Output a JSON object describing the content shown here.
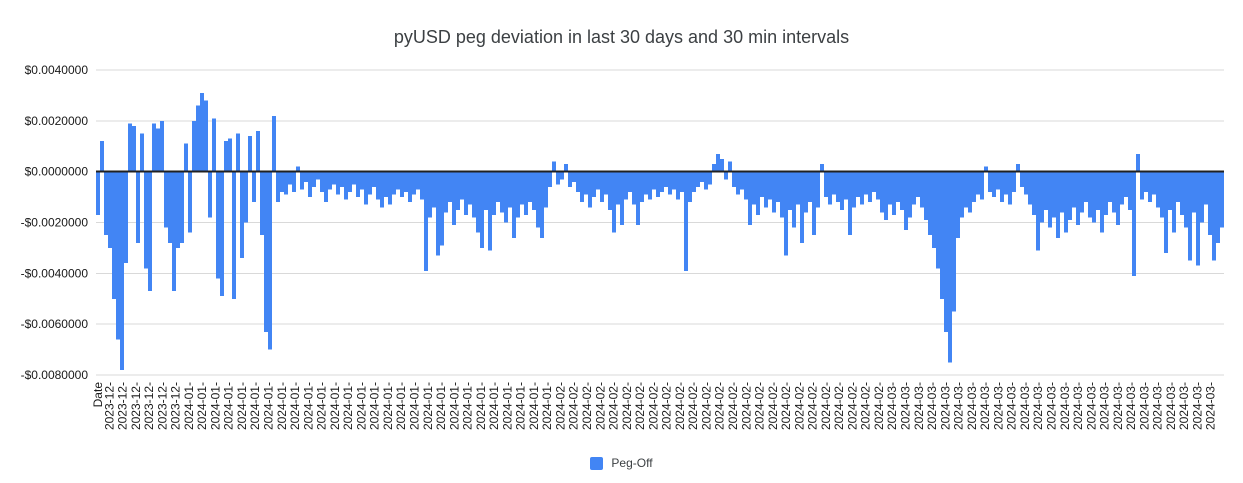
{
  "chart_data": {
    "type": "bar",
    "title": "pyUSD peg deviation in last 30 days and 30 min intervals",
    "series": [
      {
        "name": "Peg-Off"
      }
    ],
    "legend": {
      "label": "Peg-Off",
      "position": "bottom"
    },
    "x_axis": {
      "title": "Date",
      "tick_groups": [
        {
          "label": "2023-12-",
          "count": 6
        },
        {
          "label": "2024-01-",
          "count": 28
        },
        {
          "label": "2024-02-",
          "count": 25
        },
        {
          "label": "2024-03-",
          "count": 25
        }
      ]
    },
    "y_axis": {
      "tick_labels": [
        "$0.0040000",
        "$0.0020000",
        "$0.0000000",
        "-$0.0020000",
        "-$0.0040000",
        "-$0.0060000",
        "-$0.0080000"
      ],
      "tick_values": [
        0.004,
        0.002,
        0,
        -0.002,
        -0.004,
        -0.006,
        -0.008
      ],
      "range": [
        -0.008,
        0.004
      ],
      "grid": true
    },
    "value_unit": 0.0001,
    "values": [
      -17,
      12,
      -25,
      -30,
      -50,
      -66,
      -78,
      -36,
      19,
      18,
      -28,
      15,
      -38,
      -47,
      19,
      17,
      20,
      -22,
      -28,
      -47,
      -30,
      -28,
      11,
      -24,
      20,
      26,
      31,
      28,
      -18,
      21,
      -42,
      -49,
      12,
      13,
      -50,
      15,
      -34,
      -20,
      14,
      -12,
      16,
      -25,
      -63,
      -70,
      22,
      -12,
      -8,
      -9,
      -5,
      -8,
      2,
      -7,
      -4,
      -10,
      -6,
      -3,
      -8,
      -12,
      -7,
      -5,
      -9,
      -6,
      -11,
      -8,
      -5,
      -10,
      -7,
      -13,
      -9,
      -6,
      -11,
      -14,
      -10,
      -13,
      -9,
      -7,
      -10,
      -8,
      -12,
      -9,
      -7,
      -11,
      -39,
      -18,
      -14,
      -33,
      -29,
      -16,
      -12,
      -21,
      -15,
      -11,
      -17,
      -13,
      -18,
      -24,
      -30,
      -15,
      -31,
      -17,
      -12,
      -16,
      -20,
      -14,
      -26,
      -18,
      -13,
      -17,
      -12,
      -15,
      -22,
      -26,
      -14,
      -6,
      4,
      -5,
      -3,
      3,
      -6,
      -4,
      -8,
      -12,
      -9,
      -14,
      -10,
      -7,
      -12,
      -9,
      -15,
      -24,
      -13,
      -21,
      -11,
      -8,
      -13,
      -21,
      -12,
      -9,
      -11,
      -7,
      -10,
      -8,
      -6,
      -9,
      -7,
      -11,
      -8,
      -39,
      -12,
      -8,
      -6,
      -4,
      -7,
      -5,
      3,
      7,
      5,
      -3,
      4,
      -6,
      -9,
      -7,
      -11,
      -21,
      -13,
      -17,
      -10,
      -14,
      -11,
      -16,
      -12,
      -18,
      -33,
      -15,
      -22,
      -13,
      -28,
      -16,
      -12,
      -25,
      -14,
      3,
      -10,
      -13,
      -9,
      -12,
      -15,
      -11,
      -25,
      -14,
      -10,
      -13,
      -9,
      -12,
      -8,
      -11,
      -16,
      -19,
      -13,
      -17,
      -12,
      -15,
      -23,
      -18,
      -13,
      -10,
      -14,
      -19,
      -25,
      -30,
      -38,
      -50,
      -63,
      -75,
      -55,
      -26,
      -18,
      -14,
      -16,
      -12,
      -9,
      -11,
      2,
      -8,
      -10,
      -7,
      -12,
      -9,
      -13,
      -8,
      3,
      -6,
      -9,
      -13,
      -17,
      -31,
      -20,
      -15,
      -22,
      -18,
      -26,
      -16,
      -24,
      -19,
      -14,
      -21,
      -16,
      -12,
      -18,
      -20,
      -15,
      -24,
      -17,
      -12,
      -16,
      -21,
      -13,
      -10,
      -15,
      -41,
      7,
      -11,
      -8,
      -12,
      -9,
      -14,
      -18,
      -32,
      -15,
      -24,
      -12,
      -17,
      -22,
      -35,
      -16,
      -37,
      -20,
      -13,
      -25,
      -35,
      -28,
      -22
    ],
    "colors": {
      "bar": "#4285F4",
      "grid": "#d9d9d9",
      "zero_line": "#212121",
      "axis_text": "#1a1a1a",
      "title_text": "#3c4043"
    }
  }
}
